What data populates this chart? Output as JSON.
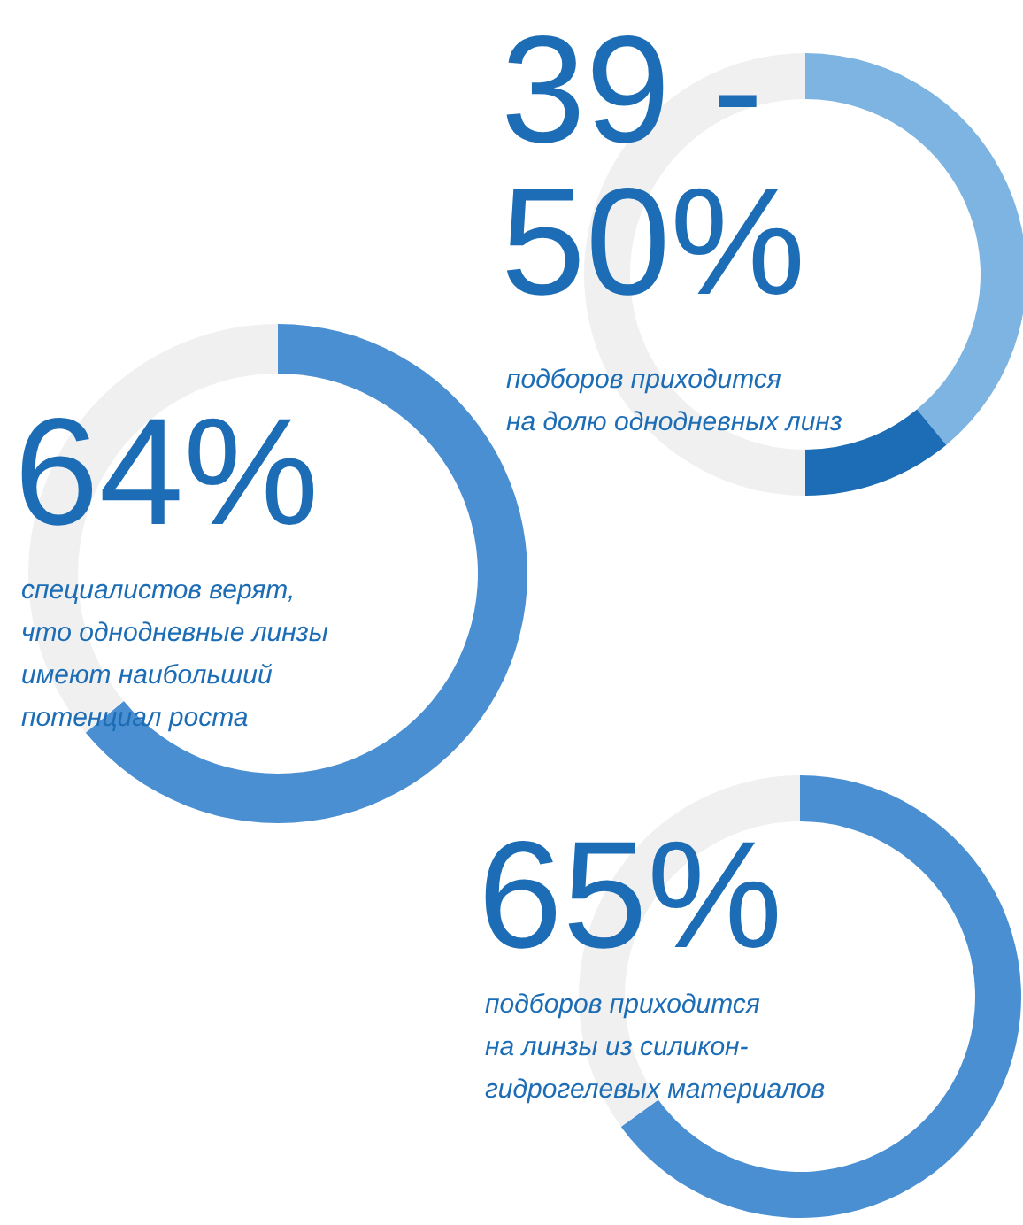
{
  "chart_data": [
    {
      "type": "donut",
      "title": "39 - 50%",
      "subtitle": "подборов приходится\nна долю однодневных линз",
      "categories": [
        null,
        null,
        null
      ],
      "values": [
        39,
        11,
        50
      ],
      "colors": [
        "#7db4e2",
        "#1c6db5",
        "#f0f0f0"
      ]
    },
    {
      "type": "donut",
      "title": "64%",
      "subtitle": "специалистов верят,\nчто однодневные линзы\nимеют наибольший\nпотенциал роста",
      "categories": [
        null,
        null
      ],
      "values": [
        64,
        36
      ],
      "colors": [
        "#4a8fd2",
        "#f0f0f0"
      ]
    },
    {
      "type": "donut",
      "title": "65%",
      "subtitle": "подборов приходится\nна линзы из силикон-\nгидрогелевых материалов",
      "categories": [
        null,
        null
      ],
      "values": [
        65,
        35
      ],
      "colors": [
        "#4a8fd2",
        "#f0f0f0"
      ]
    }
  ]
}
